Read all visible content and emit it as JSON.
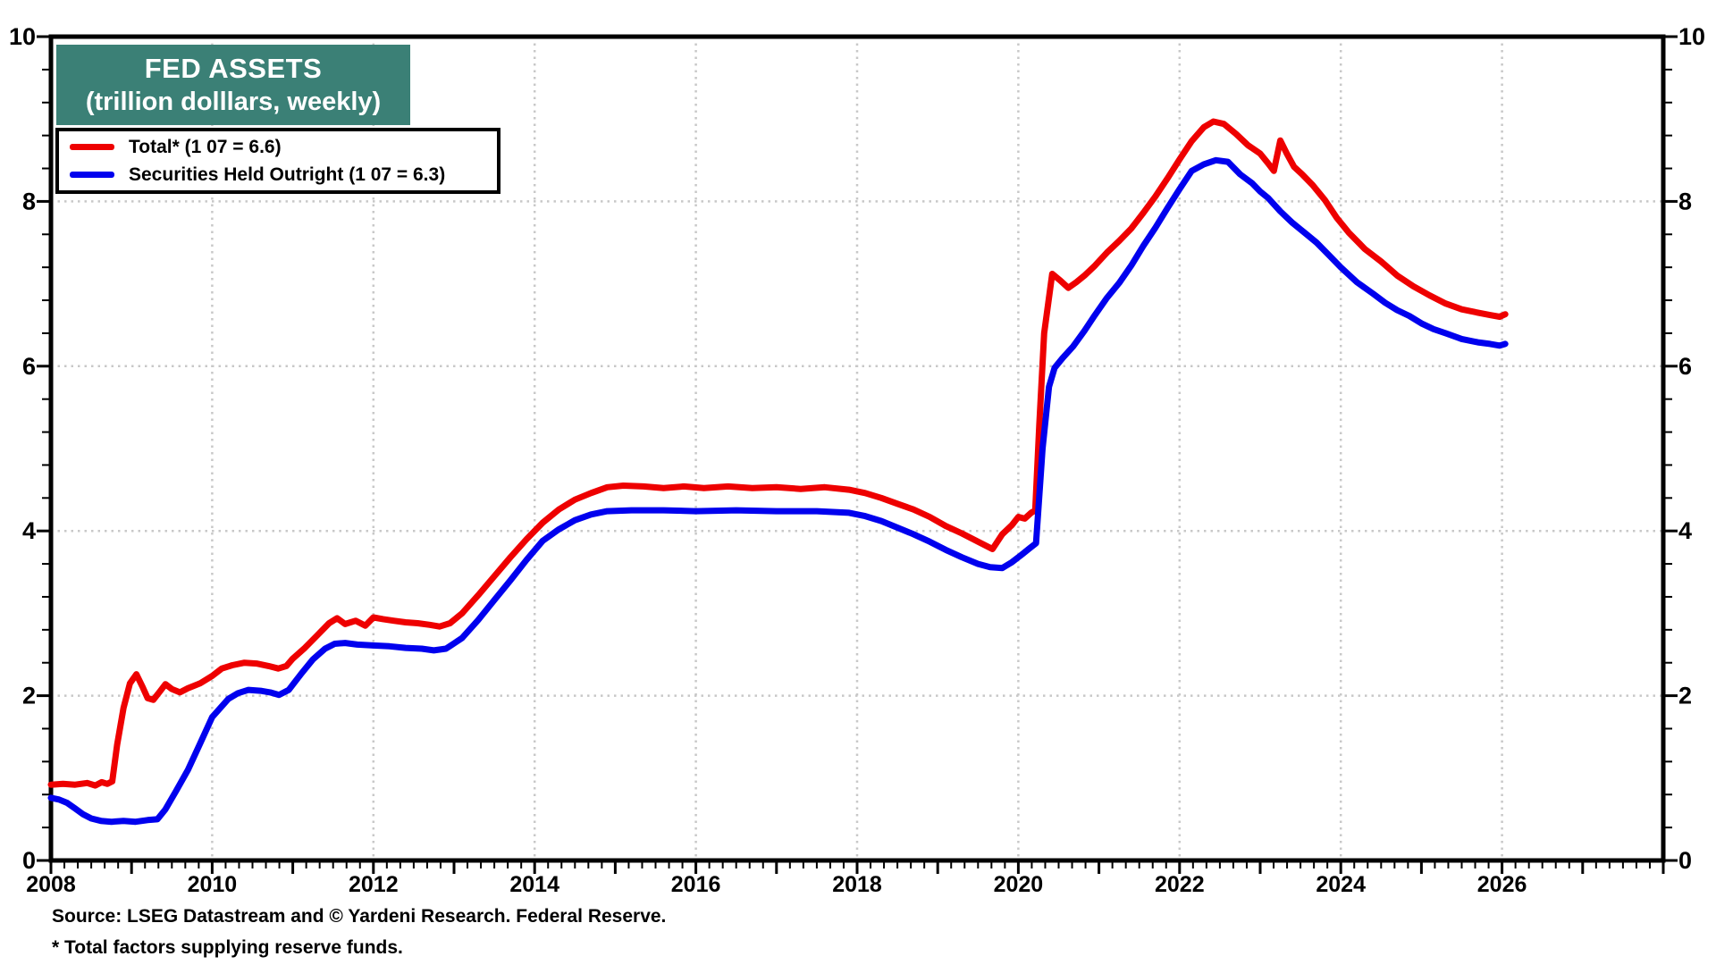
{
  "title": {
    "line1": "FED ASSETS",
    "line2": "(trillion dolllars, weekly)",
    "bg_color": "#3B8076",
    "text_color": "#FFFFFF"
  },
  "legend": [
    {
      "label": "Total* (1 07 = 6.6)",
      "color": "#EE0000"
    },
    {
      "label": "Securities Held Outright (1 07 = 6.3)",
      "color": "#0000EE"
    }
  ],
  "footer": {
    "source": "Source: LSEG Datastream and © Yardeni Research. Federal Reserve.",
    "note": "* Total factors supplying reserve funds."
  },
  "colors": {
    "axis": "#000000",
    "gridline": "#C8C8C8",
    "background": "#FFFFFF"
  },
  "chart_data": {
    "type": "line",
    "title": "FED ASSETS (trillion dolllars, weekly)",
    "xlabel": "",
    "ylabel": "trillion dollars",
    "x_axis": {
      "min": 2008,
      "max": 2028,
      "tick_label_years": [
        2008,
        2010,
        2012,
        2014,
        2016,
        2018,
        2020,
        2022,
        2024,
        2026
      ],
      "gridline_years": [
        2010,
        2012,
        2014,
        2016,
        2018,
        2020,
        2022,
        2024,
        2026
      ],
      "major_tick_step_years": 1,
      "minor_ticks_per_year": 6
    },
    "y_axis": {
      "min": 0,
      "max": 10,
      "tick_labels": [
        0,
        2,
        4,
        6,
        8,
        10
      ],
      "gridline_values": [
        2,
        4,
        6,
        8
      ],
      "minor_tick_step": 0.4,
      "labels_both_sides": true
    },
    "grid": "dotted",
    "legend_position": "top-left",
    "series": [
      {
        "name": "Total* (1 07 = 6.6)",
        "color": "#EE0000",
        "points": [
          [
            2008.0,
            0.92
          ],
          [
            2008.15,
            0.93
          ],
          [
            2008.3,
            0.92
          ],
          [
            2008.45,
            0.94
          ],
          [
            2008.55,
            0.91
          ],
          [
            2008.63,
            0.95
          ],
          [
            2008.7,
            0.93
          ],
          [
            2008.76,
            0.96
          ],
          [
            2008.82,
            1.4
          ],
          [
            2008.9,
            1.85
          ],
          [
            2008.98,
            2.15
          ],
          [
            2009.06,
            2.26
          ],
          [
            2009.14,
            2.1
          ],
          [
            2009.2,
            1.97
          ],
          [
            2009.27,
            1.95
          ],
          [
            2009.35,
            2.05
          ],
          [
            2009.42,
            2.14
          ],
          [
            2009.5,
            2.08
          ],
          [
            2009.6,
            2.04
          ],
          [
            2009.7,
            2.09
          ],
          [
            2009.85,
            2.15
          ],
          [
            2010.0,
            2.24
          ],
          [
            2010.12,
            2.33
          ],
          [
            2010.25,
            2.37
          ],
          [
            2010.4,
            2.4
          ],
          [
            2010.55,
            2.39
          ],
          [
            2010.7,
            2.36
          ],
          [
            2010.82,
            2.33
          ],
          [
            2010.92,
            2.36
          ],
          [
            2011.0,
            2.45
          ],
          [
            2011.15,
            2.58
          ],
          [
            2011.3,
            2.73
          ],
          [
            2011.45,
            2.88
          ],
          [
            2011.55,
            2.94
          ],
          [
            2011.65,
            2.87
          ],
          [
            2011.78,
            2.91
          ],
          [
            2011.9,
            2.85
          ],
          [
            2012.0,
            2.95
          ],
          [
            2012.12,
            2.93
          ],
          [
            2012.25,
            2.91
          ],
          [
            2012.4,
            2.89
          ],
          [
            2012.55,
            2.88
          ],
          [
            2012.7,
            2.86
          ],
          [
            2012.82,
            2.84
          ],
          [
            2012.95,
            2.88
          ],
          [
            2013.1,
            3.0
          ],
          [
            2013.3,
            3.22
          ],
          [
            2013.5,
            3.45
          ],
          [
            2013.7,
            3.68
          ],
          [
            2013.9,
            3.9
          ],
          [
            2014.1,
            4.1
          ],
          [
            2014.3,
            4.26
          ],
          [
            2014.5,
            4.38
          ],
          [
            2014.7,
            4.46
          ],
          [
            2014.9,
            4.53
          ],
          [
            2015.1,
            4.55
          ],
          [
            2015.35,
            4.54
          ],
          [
            2015.6,
            4.52
          ],
          [
            2015.85,
            4.54
          ],
          [
            2016.1,
            4.52
          ],
          [
            2016.4,
            4.54
          ],
          [
            2016.7,
            4.52
          ],
          [
            2017.0,
            4.53
          ],
          [
            2017.3,
            4.51
          ],
          [
            2017.6,
            4.53
          ],
          [
            2017.9,
            4.5
          ],
          [
            2018.1,
            4.46
          ],
          [
            2018.3,
            4.4
          ],
          [
            2018.5,
            4.33
          ],
          [
            2018.7,
            4.26
          ],
          [
            2018.9,
            4.17
          ],
          [
            2019.1,
            4.06
          ],
          [
            2019.3,
            3.97
          ],
          [
            2019.5,
            3.87
          ],
          [
            2019.68,
            3.78
          ],
          [
            2019.8,
            3.96
          ],
          [
            2019.92,
            4.07
          ],
          [
            2020.0,
            4.17
          ],
          [
            2020.08,
            4.15
          ],
          [
            2020.16,
            4.22
          ],
          [
            2020.21,
            4.25
          ],
          [
            2020.26,
            5.3
          ],
          [
            2020.32,
            6.4
          ],
          [
            2020.42,
            7.12
          ],
          [
            2020.52,
            7.04
          ],
          [
            2020.62,
            6.95
          ],
          [
            2020.72,
            7.02
          ],
          [
            2020.82,
            7.1
          ],
          [
            2020.95,
            7.22
          ],
          [
            2021.1,
            7.38
          ],
          [
            2021.25,
            7.52
          ],
          [
            2021.4,
            7.67
          ],
          [
            2021.55,
            7.86
          ],
          [
            2021.7,
            8.06
          ],
          [
            2021.85,
            8.28
          ],
          [
            2022.0,
            8.51
          ],
          [
            2022.15,
            8.73
          ],
          [
            2022.3,
            8.9
          ],
          [
            2022.42,
            8.97
          ],
          [
            2022.55,
            8.94
          ],
          [
            2022.7,
            8.82
          ],
          [
            2022.85,
            8.68
          ],
          [
            2023.0,
            8.58
          ],
          [
            2023.1,
            8.46
          ],
          [
            2023.17,
            8.37
          ],
          [
            2023.25,
            8.74
          ],
          [
            2023.33,
            8.58
          ],
          [
            2023.42,
            8.42
          ],
          [
            2023.52,
            8.33
          ],
          [
            2023.65,
            8.2
          ],
          [
            2023.8,
            8.02
          ],
          [
            2023.95,
            7.8
          ],
          [
            2024.1,
            7.62
          ],
          [
            2024.3,
            7.42
          ],
          [
            2024.5,
            7.27
          ],
          [
            2024.7,
            7.1
          ],
          [
            2024.9,
            6.97
          ],
          [
            2025.1,
            6.86
          ],
          [
            2025.3,
            6.76
          ],
          [
            2025.5,
            6.69
          ],
          [
            2025.7,
            6.65
          ],
          [
            2025.85,
            6.62
          ],
          [
            2025.97,
            6.6
          ],
          [
            2026.04,
            6.63
          ]
        ]
      },
      {
        "name": "Securities Held Outright (1 07 = 6.3)",
        "color": "#0000EE",
        "points": [
          [
            2008.0,
            0.76
          ],
          [
            2008.1,
            0.74
          ],
          [
            2008.2,
            0.7
          ],
          [
            2008.3,
            0.63
          ],
          [
            2008.4,
            0.56
          ],
          [
            2008.5,
            0.51
          ],
          [
            2008.62,
            0.48
          ],
          [
            2008.75,
            0.47
          ],
          [
            2008.9,
            0.48
          ],
          [
            2009.05,
            0.47
          ],
          [
            2009.2,
            0.49
          ],
          [
            2009.32,
            0.5
          ],
          [
            2009.42,
            0.62
          ],
          [
            2009.55,
            0.84
          ],
          [
            2009.7,
            1.1
          ],
          [
            2009.85,
            1.42
          ],
          [
            2010.0,
            1.74
          ],
          [
            2010.1,
            1.85
          ],
          [
            2010.2,
            1.96
          ],
          [
            2010.32,
            2.03
          ],
          [
            2010.45,
            2.07
          ],
          [
            2010.6,
            2.06
          ],
          [
            2010.72,
            2.04
          ],
          [
            2010.83,
            2.01
          ],
          [
            2010.95,
            2.07
          ],
          [
            2011.1,
            2.26
          ],
          [
            2011.25,
            2.44
          ],
          [
            2011.4,
            2.57
          ],
          [
            2011.52,
            2.63
          ],
          [
            2011.65,
            2.64
          ],
          [
            2011.8,
            2.62
          ],
          [
            2012.0,
            2.61
          ],
          [
            2012.2,
            2.6
          ],
          [
            2012.4,
            2.58
          ],
          [
            2012.6,
            2.57
          ],
          [
            2012.75,
            2.55
          ],
          [
            2012.9,
            2.57
          ],
          [
            2013.1,
            2.7
          ],
          [
            2013.3,
            2.92
          ],
          [
            2013.5,
            3.16
          ],
          [
            2013.7,
            3.4
          ],
          [
            2013.9,
            3.65
          ],
          [
            2014.1,
            3.88
          ],
          [
            2014.3,
            4.02
          ],
          [
            2014.5,
            4.13
          ],
          [
            2014.7,
            4.2
          ],
          [
            2014.9,
            4.24
          ],
          [
            2015.2,
            4.25
          ],
          [
            2015.6,
            4.25
          ],
          [
            2016.0,
            4.24
          ],
          [
            2016.5,
            4.25
          ],
          [
            2017.0,
            4.24
          ],
          [
            2017.5,
            4.24
          ],
          [
            2017.9,
            4.22
          ],
          [
            2018.1,
            4.18
          ],
          [
            2018.3,
            4.12
          ],
          [
            2018.5,
            4.04
          ],
          [
            2018.7,
            3.96
          ],
          [
            2018.9,
            3.87
          ],
          [
            2019.1,
            3.77
          ],
          [
            2019.3,
            3.68
          ],
          [
            2019.5,
            3.6
          ],
          [
            2019.65,
            3.56
          ],
          [
            2019.8,
            3.55
          ],
          [
            2019.92,
            3.62
          ],
          [
            2020.04,
            3.71
          ],
          [
            2020.14,
            3.79
          ],
          [
            2020.22,
            3.85
          ],
          [
            2020.3,
            5.0
          ],
          [
            2020.38,
            5.75
          ],
          [
            2020.45,
            5.98
          ],
          [
            2020.55,
            6.1
          ],
          [
            2020.68,
            6.24
          ],
          [
            2020.82,
            6.43
          ],
          [
            2020.95,
            6.62
          ],
          [
            2021.1,
            6.83
          ],
          [
            2021.25,
            7.01
          ],
          [
            2021.4,
            7.22
          ],
          [
            2021.55,
            7.46
          ],
          [
            2021.7,
            7.68
          ],
          [
            2021.85,
            7.92
          ],
          [
            2022.0,
            8.15
          ],
          [
            2022.15,
            8.37
          ],
          [
            2022.3,
            8.45
          ],
          [
            2022.45,
            8.5
          ],
          [
            2022.6,
            8.48
          ],
          [
            2022.75,
            8.33
          ],
          [
            2022.9,
            8.22
          ],
          [
            2023.0,
            8.12
          ],
          [
            2023.1,
            8.04
          ],
          [
            2023.25,
            7.88
          ],
          [
            2023.4,
            7.74
          ],
          [
            2023.55,
            7.62
          ],
          [
            2023.7,
            7.5
          ],
          [
            2023.85,
            7.35
          ],
          [
            2024.0,
            7.2
          ],
          [
            2024.2,
            7.02
          ],
          [
            2024.4,
            6.88
          ],
          [
            2024.55,
            6.77
          ],
          [
            2024.7,
            6.68
          ],
          [
            2024.85,
            6.61
          ],
          [
            2025.0,
            6.52
          ],
          [
            2025.15,
            6.45
          ],
          [
            2025.3,
            6.4
          ],
          [
            2025.5,
            6.33
          ],
          [
            2025.7,
            6.29
          ],
          [
            2025.85,
            6.27
          ],
          [
            2025.97,
            6.25
          ],
          [
            2026.04,
            6.27
          ]
        ]
      }
    ]
  }
}
